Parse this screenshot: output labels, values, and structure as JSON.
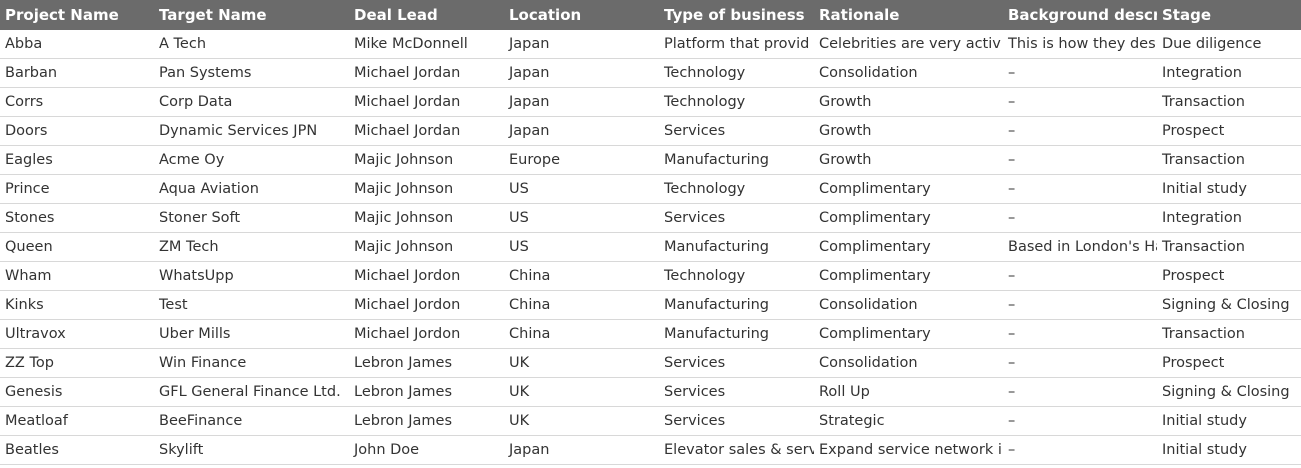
{
  "table": {
    "columns": [
      "Project Name",
      "Target Name",
      "Deal Lead",
      "Location",
      "Type of business",
      "Rationale",
      "Background descr",
      "Stage"
    ],
    "rows": [
      [
        "Abba",
        "A Tech",
        "Mike McDonnell",
        "Japan",
        "Platform that provid",
        "Celebrities are very activ",
        "This is how they des",
        "Due diligence"
      ],
      [
        "Barban",
        "Pan Systems",
        "Michael Jordan",
        "Japan",
        "Technology",
        "Consolidation",
        "–",
        "Integration"
      ],
      [
        "Corrs",
        "Corp Data",
        "Michael Jordan",
        "Japan",
        "Technology",
        "Growth",
        "–",
        "Transaction"
      ],
      [
        "Doors",
        "Dynamic Services JPN",
        "Michael Jordan",
        "Japan",
        "Services",
        "Growth",
        "–",
        "Prospect"
      ],
      [
        "Eagles",
        "Acme Oy",
        "Majic Johnson",
        "Europe",
        "Manufacturing",
        "Growth",
        "–",
        "Transaction"
      ],
      [
        "Prince",
        "Aqua Aviation",
        "Majic Johnson",
        "US",
        "Technology",
        "Complimentary",
        "–",
        "Initial study"
      ],
      [
        "Stones",
        "Stoner Soft",
        "Majic Johnson",
        "US",
        "Services",
        "Complimentary",
        "–",
        "Integration"
      ],
      [
        "Queen",
        "ZM Tech",
        "Majic Johnson",
        "US",
        "Manufacturing",
        "Complimentary",
        "Based in London's Ha",
        "Transaction"
      ],
      [
        "Wham",
        "WhatsUpp",
        "Michael Jordon",
        "China",
        "Technology",
        "Complimentary",
        "–",
        "Prospect"
      ],
      [
        "Kinks",
        "Test",
        "Michael Jordon",
        "China",
        "Manufacturing",
        "Consolidation",
        "–",
        "Signing & Closing"
      ],
      [
        "Ultravox",
        "Uber Mills",
        "Michael Jordon",
        "China",
        "Manufacturing",
        "Complimentary",
        "–",
        "Transaction"
      ],
      [
        "ZZ Top",
        "Win Finance",
        "Lebron James",
        "UK",
        "Services",
        "Consolidation",
        "–",
        "Prospect"
      ],
      [
        "Genesis",
        "GFL General Finance Ltd.",
        "Lebron James",
        "UK",
        "Services",
        "Roll Up",
        "–",
        "Signing & Closing"
      ],
      [
        "Meatloaf",
        "BeeFinance",
        "Lebron James",
        "UK",
        "Services",
        "Strategic",
        "–",
        "Initial study"
      ],
      [
        "Beatles",
        "Skylift",
        "John Doe",
        "Japan",
        "Elevator sales & servi",
        "Expand service network i",
        "–",
        "Initial study"
      ]
    ]
  }
}
